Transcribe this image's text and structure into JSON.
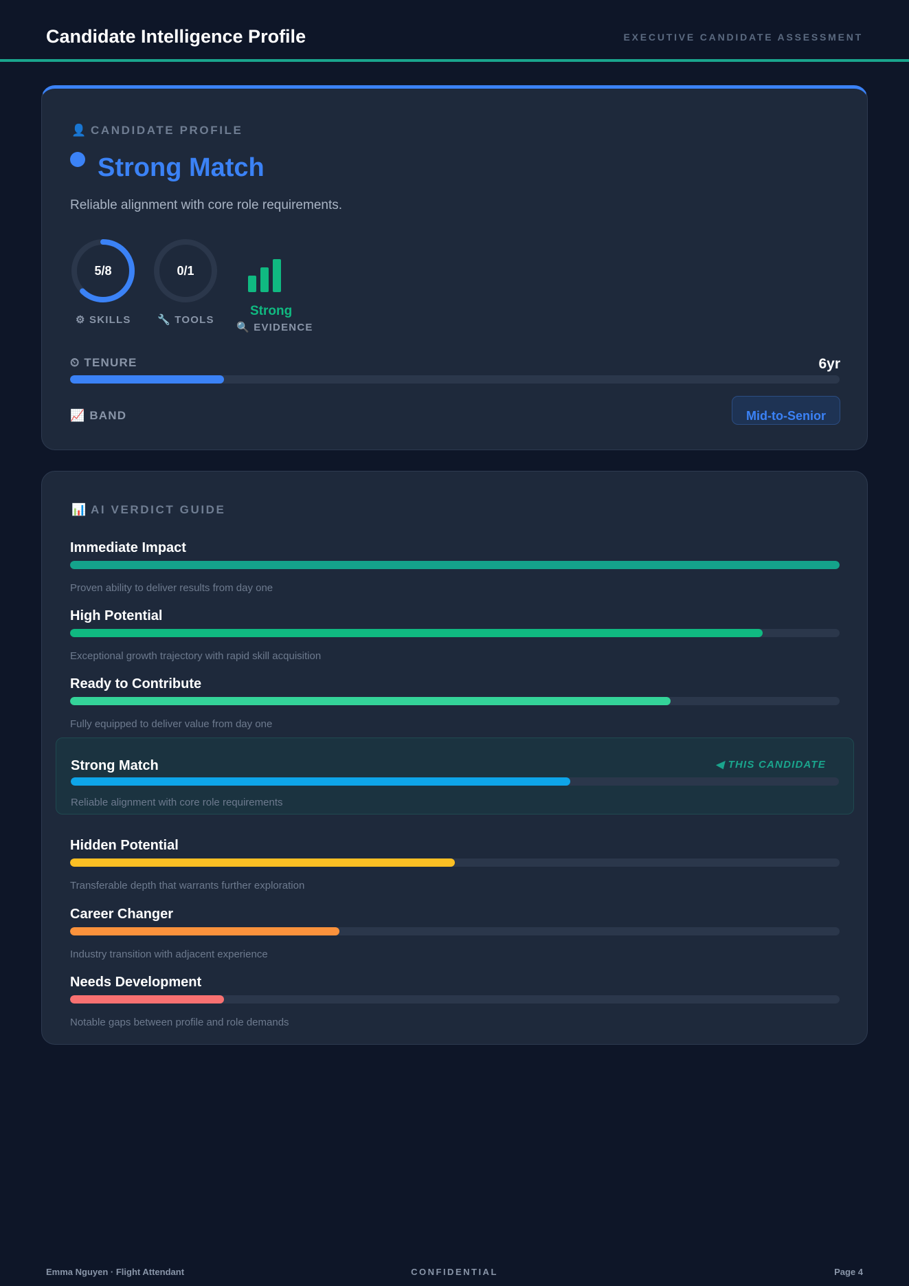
{
  "header": {
    "title": "Candidate Intelligence Profile",
    "subtitle": "EXECUTIVE CANDIDATE ASSESSMENT"
  },
  "profile": {
    "section_icon": "👤",
    "section_label": "CANDIDATE PROFILE",
    "verdict": "Strong Match",
    "verdict_desc": "Reliable alignment with core role requirements.",
    "accent_color": "#3b82f6",
    "skills": {
      "value": "5/8",
      "matched": 5,
      "total": 8,
      "icon": "⚙",
      "label": "SKILLS"
    },
    "tools": {
      "value": "0/1",
      "matched": 0,
      "total": 1,
      "icon": "🔧",
      "label": "TOOLS"
    },
    "evidence": {
      "strength": "Strong",
      "icon": "🔍",
      "label": "EVIDENCE",
      "color": "#10b981"
    },
    "tenure": {
      "icon": "⏲",
      "label": "TENURE",
      "value": "6yr",
      "fraction": 0.2
    },
    "band": {
      "icon": "📈",
      "label": "BAND",
      "value": "Mid-to-Senior"
    }
  },
  "verdict_guide": {
    "section_icon": "📊",
    "section_label": "AI VERDICT GUIDE",
    "current_marker": "◀ THIS CANDIDATE",
    "rows": [
      {
        "name": "Immediate Impact",
        "desc": "Proven ability to deliver results from day one",
        "fraction": 1.0,
        "color": "#14a38b",
        "current": false
      },
      {
        "name": "High Potential",
        "desc": "Exceptional growth trajectory with rapid skill acquisition",
        "fraction": 0.9,
        "color": "#10b981",
        "current": false
      },
      {
        "name": "Ready to Contribute",
        "desc": "Fully equipped to deliver value from day one",
        "fraction": 0.78,
        "color": "#34d399",
        "current": false
      },
      {
        "name": "Strong Match",
        "desc": "Reliable alignment with core role requirements",
        "fraction": 0.65,
        "color": "#0ea5e9",
        "current": true
      },
      {
        "name": "Hidden Potential",
        "desc": "Transferable depth that warrants further exploration",
        "fraction": 0.5,
        "color": "#fbbf24",
        "current": false
      },
      {
        "name": "Career Changer",
        "desc": "Industry transition with adjacent experience",
        "fraction": 0.35,
        "color": "#fb923c",
        "current": false
      },
      {
        "name": "Needs Development",
        "desc": "Notable gaps between profile and role demands",
        "fraction": 0.2,
        "color": "#f87171",
        "current": false
      }
    ]
  },
  "footer": {
    "left": "Emma Nguyen · Flight Attendant",
    "center": "CONFIDENTIAL",
    "right": "Page 4"
  }
}
